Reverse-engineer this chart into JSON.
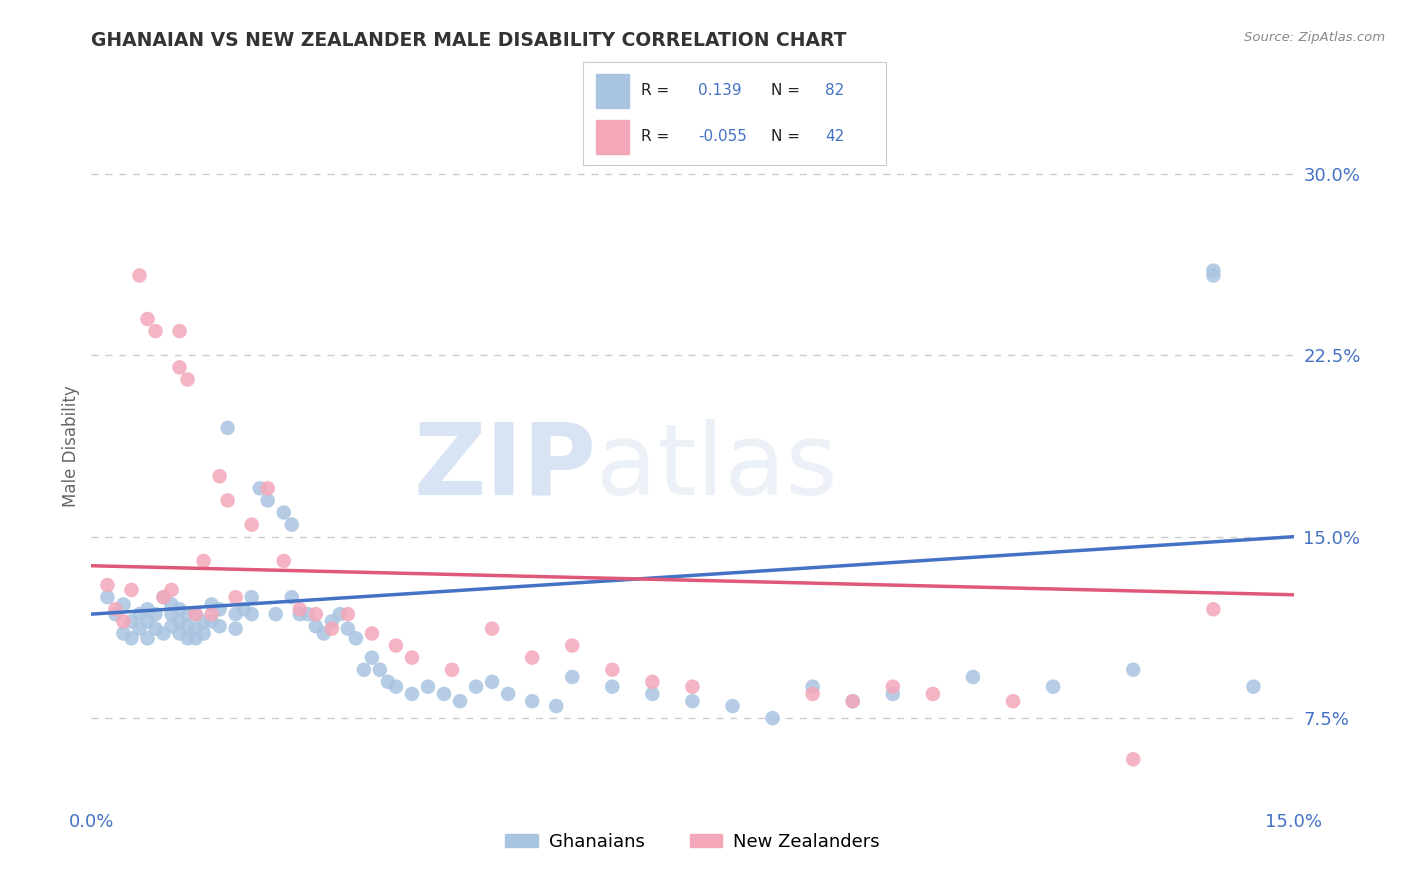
{
  "title": "GHANAIAN VS NEW ZEALANDER MALE DISABILITY CORRELATION CHART",
  "source_text": "Source: ZipAtlas.com",
  "ylabel": "Male Disability",
  "x_min": 0.0,
  "x_max": 0.15,
  "y_min": 0.04,
  "y_max": 0.335,
  "ytick_labels": [
    "7.5%",
    "15.0%",
    "22.5%",
    "30.0%"
  ],
  "ytick_values": [
    0.075,
    0.15,
    0.225,
    0.3
  ],
  "xtick_labels": [
    "0.0%",
    "15.0%"
  ],
  "xtick_values": [
    0.0,
    0.15
  ],
  "ghanaian_color": "#a8c4e0",
  "nz_color": "#f4a7b9",
  "ghanaian_line_color": "#4472c4",
  "nz_line_color": "#e05878",
  "watermark": "ZIPatlas",
  "watermark_color": "#dce6f0",
  "ghanaian_label": "Ghanaians",
  "nz_label": "New Zealanders",
  "title_color": "#333333",
  "axis_label_color": "#666666",
  "blue_text_color": "#4472c4",
  "grid_color": "#cccccc",
  "ghanaian_x": [
    0.002,
    0.003,
    0.004,
    0.004,
    0.005,
    0.005,
    0.006,
    0.006,
    0.007,
    0.007,
    0.007,
    0.008,
    0.008,
    0.009,
    0.009,
    0.01,
    0.01,
    0.01,
    0.011,
    0.011,
    0.011,
    0.012,
    0.012,
    0.012,
    0.013,
    0.013,
    0.013,
    0.014,
    0.014,
    0.015,
    0.015,
    0.016,
    0.016,
    0.017,
    0.018,
    0.018,
    0.019,
    0.02,
    0.02,
    0.021,
    0.022,
    0.023,
    0.024,
    0.025,
    0.025,
    0.026,
    0.027,
    0.028,
    0.029,
    0.03,
    0.031,
    0.032,
    0.033,
    0.034,
    0.035,
    0.036,
    0.037,
    0.038,
    0.04,
    0.042,
    0.044,
    0.046,
    0.048,
    0.05,
    0.052,
    0.055,
    0.058,
    0.06,
    0.065,
    0.07,
    0.075,
    0.08,
    0.085,
    0.09,
    0.095,
    0.1,
    0.11,
    0.12,
    0.13,
    0.14,
    0.14,
    0.145
  ],
  "ghanaian_y": [
    0.125,
    0.118,
    0.122,
    0.11,
    0.115,
    0.108,
    0.118,
    0.112,
    0.12,
    0.115,
    0.108,
    0.118,
    0.112,
    0.125,
    0.11,
    0.122,
    0.118,
    0.113,
    0.12,
    0.115,
    0.11,
    0.118,
    0.113,
    0.108,
    0.118,
    0.112,
    0.108,
    0.115,
    0.11,
    0.122,
    0.115,
    0.12,
    0.113,
    0.195,
    0.118,
    0.112,
    0.12,
    0.125,
    0.118,
    0.17,
    0.165,
    0.118,
    0.16,
    0.125,
    0.155,
    0.118,
    0.118,
    0.113,
    0.11,
    0.115,
    0.118,
    0.112,
    0.108,
    0.095,
    0.1,
    0.095,
    0.09,
    0.088,
    0.085,
    0.088,
    0.085,
    0.082,
    0.088,
    0.09,
    0.085,
    0.082,
    0.08,
    0.092,
    0.088,
    0.085,
    0.082,
    0.08,
    0.075,
    0.088,
    0.082,
    0.085,
    0.092,
    0.088,
    0.095,
    0.26,
    0.258,
    0.088
  ],
  "nz_x": [
    0.002,
    0.003,
    0.004,
    0.005,
    0.006,
    0.007,
    0.008,
    0.009,
    0.01,
    0.011,
    0.011,
    0.012,
    0.013,
    0.014,
    0.015,
    0.016,
    0.017,
    0.018,
    0.02,
    0.022,
    0.024,
    0.026,
    0.028,
    0.03,
    0.032,
    0.035,
    0.038,
    0.04,
    0.045,
    0.05,
    0.055,
    0.06,
    0.065,
    0.07,
    0.075,
    0.09,
    0.095,
    0.1,
    0.105,
    0.115,
    0.13,
    0.14
  ],
  "nz_y": [
    0.13,
    0.12,
    0.115,
    0.128,
    0.258,
    0.24,
    0.235,
    0.125,
    0.128,
    0.235,
    0.22,
    0.215,
    0.118,
    0.14,
    0.118,
    0.175,
    0.165,
    0.125,
    0.155,
    0.17,
    0.14,
    0.12,
    0.118,
    0.112,
    0.118,
    0.11,
    0.105,
    0.1,
    0.095,
    0.112,
    0.1,
    0.105,
    0.095,
    0.09,
    0.088,
    0.085,
    0.082,
    0.088,
    0.085,
    0.082,
    0.058,
    0.12
  ],
  "gh_trend_x0": 0.0,
  "gh_trend_x1": 0.15,
  "gh_trend_y0": 0.118,
  "gh_trend_y1": 0.15,
  "nz_trend_x0": 0.0,
  "nz_trend_x1": 0.15,
  "nz_trend_y0": 0.138,
  "nz_trend_y1": 0.126
}
